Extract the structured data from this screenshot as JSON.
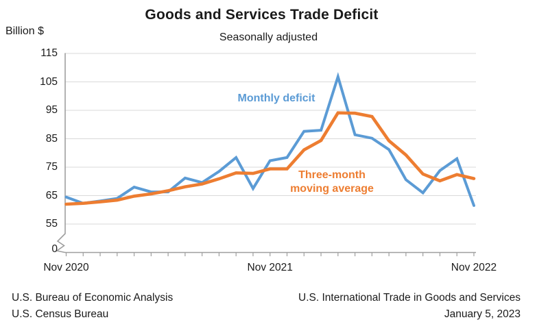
{
  "header": {
    "title": "Goods and Services Trade Deficit",
    "subtitle": "Seasonally adjusted",
    "y_axis_unit": "Billion $"
  },
  "annotations": {
    "monthly_label": "Monthly deficit",
    "avg_label_line1": "Three-month",
    "avg_label_line2": "moving average"
  },
  "footer": {
    "left_line1": "U.S. Bureau of Economic Analysis",
    "left_line2": "U.S. Census Bureau",
    "right_line1": "U.S. International Trade in Goods and Services",
    "right_line2": "January 5, 2023"
  },
  "colors": {
    "monthly_line": "#5B9BD5",
    "moving_avg_line": "#ED7D31",
    "gridline": "#d9d9d9",
    "axis": "#9e9e9e",
    "text": "#1a1a1a"
  },
  "chart_data": {
    "type": "line",
    "title": "Goods and Services Trade Deficit",
    "subtitle": "Seasonally adjusted",
    "ylabel": "Billion $",
    "ylim": [
      55,
      115
    ],
    "axis_break_to_zero": true,
    "grid": "horizontal",
    "y_ticks": [
      115,
      105,
      95,
      85,
      75,
      65,
      55,
      0
    ],
    "x_tick_labels": [
      "Nov 2020",
      "Nov 2021",
      "Nov 2022"
    ],
    "x_tick_indices": [
      0,
      12,
      24
    ],
    "months": [
      "Nov 2020",
      "Dec 2020",
      "Jan 2021",
      "Feb 2021",
      "Mar 2021",
      "Apr 2021",
      "May 2021",
      "Jun 2021",
      "Jul 2021",
      "Aug 2021",
      "Sep 2021",
      "Oct 2021",
      "Nov 2021",
      "Dec 2021",
      "Jan 2022",
      "Feb 2022",
      "Mar 2022",
      "Apr 2022",
      "May 2022",
      "Jun 2022",
      "Jul 2022",
      "Aug 2022",
      "Sep 2022",
      "Oct 2022",
      "Nov 2022"
    ],
    "series": [
      {
        "name": "Monthly deficit",
        "color": "#5B9BD5",
        "values": [
          64.5,
          62.3,
          63.1,
          64.0,
          68.0,
          66.3,
          66.3,
          71.2,
          69.6,
          73.5,
          78.4,
          67.5,
          77.3,
          78.4,
          87.6,
          88.0,
          106.8,
          86.4,
          85.2,
          81.2,
          70.6,
          66.0,
          73.8,
          78.0,
          61.5
        ]
      },
      {
        "name": "Three-month moving average",
        "color": "#ED7D31",
        "values": [
          62.0,
          62.3,
          62.8,
          63.4,
          64.8,
          65.6,
          66.7,
          68.1,
          69.1,
          70.9,
          73.0,
          72.8,
          74.4,
          74.4,
          81.1,
          84.4,
          94.1,
          94.0,
          92.8,
          84.3,
          79.3,
          72.6,
          70.2,
          72.4,
          71.0
        ]
      }
    ]
  }
}
